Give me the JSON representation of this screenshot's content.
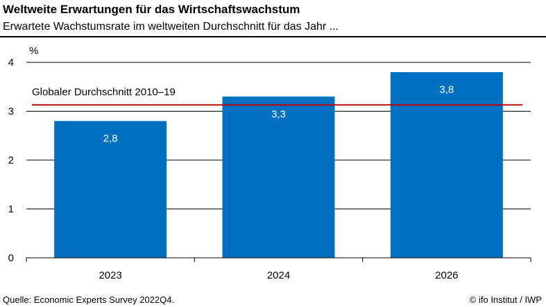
{
  "header": {
    "title": "Weltweite Erwartungen für das Wirtschaftswachstum",
    "subtitle": "Erwartete Wachstumsrate im weltweiten Durchschnitt für das Jahr ..."
  },
  "footer": {
    "source": "Quelle: Economic Experts Survey 2022Q4.",
    "credit": "© ifo Institut / IWP"
  },
  "colors": {
    "bar": "#0070C0",
    "reference_line": "#C00000",
    "grid": "#000000"
  },
  "chart_data": {
    "type": "bar",
    "categories": [
      "2023",
      "2024",
      "2026"
    ],
    "values": [
      2.8,
      3.3,
      3.8
    ],
    "value_labels": [
      "2,8",
      "3,3",
      "3,8"
    ],
    "ylabel": "%",
    "ylim": [
      0,
      4
    ],
    "yticks": [
      0,
      1,
      2,
      3,
      4
    ],
    "grid": true,
    "reference_line": {
      "label": "Globaler Durchschnitt 2010–19",
      "value": 3.13
    }
  }
}
